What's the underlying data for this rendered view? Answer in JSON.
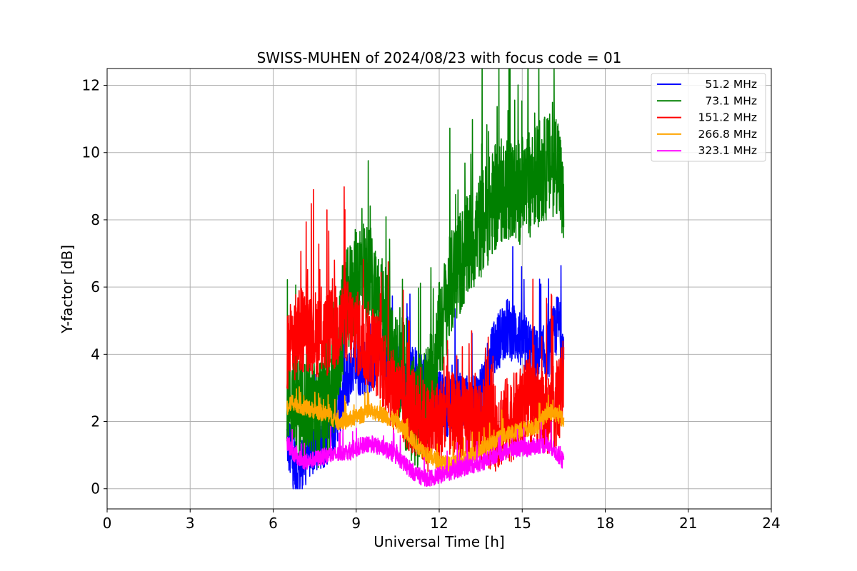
{
  "chart_data": {
    "type": "line",
    "title": "SWISS-MUHEN of 2024/08/23 with focus code = 01",
    "xlabel": "Universal Time [h]",
    "ylabel": "Y-factor [dB]",
    "xlim": [
      0,
      24
    ],
    "ylim": [
      -0.6,
      12.5
    ],
    "xticks": [
      0,
      3,
      6,
      9,
      12,
      15,
      18,
      21,
      24
    ],
    "yticks": [
      0,
      2,
      4,
      6,
      8,
      10,
      12
    ],
    "grid": true,
    "legend_position": "top-right",
    "series": [
      {
        "name": "51.2 MHz",
        "color": "#0000ff",
        "noise": 0.9,
        "x": [
          6.5,
          6.7,
          6.9,
          7.2,
          7.6,
          8.0,
          8.3,
          8.6,
          8.9,
          9.2,
          9.6,
          10.0,
          10.4,
          10.8,
          11.2,
          11.6,
          12.0,
          12.4,
          12.8,
          13.2,
          13.6,
          14.0,
          14.4,
          14.8,
          15.2,
          15.6,
          16.0,
          16.3,
          16.5
        ],
        "y": [
          1.5,
          0.8,
          0.5,
          1.0,
          1.4,
          1.6,
          2.2,
          3.0,
          3.8,
          3.6,
          3.8,
          4.0,
          3.6,
          3.2,
          3.4,
          3.0,
          2.6,
          2.4,
          2.6,
          2.4,
          3.0,
          4.2,
          4.8,
          4.6,
          4.2,
          3.8,
          4.2,
          5.0,
          4.0
        ]
      },
      {
        "name": "73.1 MHz",
        "color": "#008000",
        "noise": 1.6,
        "x": [
          6.5,
          6.7,
          6.9,
          7.2,
          7.6,
          8.0,
          8.3,
          8.6,
          8.9,
          9.2,
          9.6,
          10.0,
          10.4,
          10.8,
          11.2,
          11.6,
          12.0,
          12.4,
          12.8,
          13.2,
          13.6,
          14.0,
          14.4,
          14.8,
          15.2,
          15.6,
          16.0,
          16.3,
          16.5
        ],
        "y": [
          3.0,
          2.6,
          2.4,
          2.4,
          2.2,
          2.4,
          3.6,
          5.4,
          6.0,
          6.6,
          6.0,
          5.2,
          3.8,
          2.6,
          2.2,
          2.8,
          4.6,
          6.0,
          6.8,
          7.4,
          8.0,
          8.6,
          9.0,
          8.8,
          9.0,
          9.4,
          9.6,
          9.8,
          8.0
        ]
      },
      {
        "name": "151.2 MHz",
        "color": "#ff0000",
        "noise": 1.3,
        "x": [
          6.5,
          6.7,
          6.9,
          7.2,
          7.6,
          8.0,
          8.3,
          8.6,
          8.9,
          9.2,
          9.6,
          10.0,
          10.4,
          10.8,
          11.2,
          11.6,
          12.0,
          12.4,
          12.8,
          13.2,
          13.6,
          14.0,
          14.4,
          14.8,
          15.2,
          15.6,
          16.0,
          16.3,
          16.5
        ],
        "y": [
          4.0,
          4.4,
          4.6,
          4.8,
          4.6,
          4.6,
          4.8,
          5.0,
          4.8,
          4.4,
          4.2,
          3.6,
          2.8,
          2.4,
          2.2,
          1.8,
          2.0,
          2.2,
          2.0,
          2.2,
          2.0,
          1.8,
          2.0,
          2.2,
          2.6,
          2.4,
          2.2,
          2.6,
          3.2
        ]
      },
      {
        "name": "266.8 MHz",
        "color": "#ffa500",
        "noise": 0.25,
        "x": [
          6.5,
          6.7,
          6.9,
          7.2,
          7.6,
          8.0,
          8.3,
          8.6,
          8.9,
          9.2,
          9.6,
          10.0,
          10.4,
          10.8,
          11.2,
          11.6,
          12.0,
          12.4,
          12.8,
          13.2,
          13.6,
          14.0,
          14.4,
          14.8,
          15.2,
          15.6,
          16.0,
          16.3,
          16.5
        ],
        "y": [
          2.4,
          2.6,
          2.5,
          2.4,
          2.3,
          2.2,
          2.0,
          2.0,
          2.1,
          2.2,
          2.3,
          2.2,
          2.0,
          1.7,
          1.3,
          1.0,
          0.8,
          0.7,
          0.8,
          1.0,
          1.2,
          1.4,
          1.6,
          1.7,
          1.8,
          1.9,
          2.3,
          2.2,
          2.0
        ]
      },
      {
        "name": "323.1 MHz",
        "color": "#ff00ff",
        "noise": 0.25,
        "x": [
          6.5,
          6.7,
          6.9,
          7.2,
          7.6,
          8.0,
          8.3,
          8.6,
          8.9,
          9.2,
          9.6,
          10.0,
          10.4,
          10.8,
          11.2,
          11.6,
          12.0,
          12.4,
          12.8,
          13.2,
          13.6,
          14.0,
          14.4,
          14.8,
          15.2,
          15.6,
          16.0,
          16.3,
          16.5
        ],
        "y": [
          1.4,
          1.1,
          0.9,
          0.8,
          0.9,
          1.0,
          1.0,
          1.1,
          1.1,
          1.3,
          1.3,
          1.2,
          1.0,
          0.7,
          0.4,
          0.3,
          0.4,
          0.5,
          0.6,
          0.7,
          0.8,
          1.0,
          1.1,
          1.2,
          1.2,
          1.3,
          1.3,
          1.0,
          0.8
        ]
      }
    ]
  }
}
